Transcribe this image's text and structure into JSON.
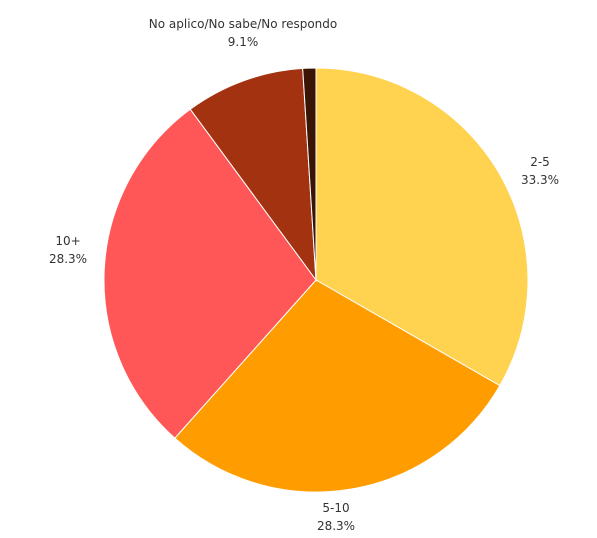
{
  "chart_data": {
    "type": "pie",
    "title": "",
    "slices": [
      {
        "label": "2-5",
        "value": 33.3,
        "value_label": "33.3%",
        "color": "#FFD24F"
      },
      {
        "label": "5-10",
        "value": 28.3,
        "value_label": "28.3%",
        "color": "#FF9D00"
      },
      {
        "label": "10+",
        "value": 28.3,
        "value_label": "28.3%",
        "color": "#FF5757"
      },
      {
        "label": "No aplico/No sabe/No respondo",
        "value": 9.1,
        "value_label": "9.1%",
        "color": "#A33310"
      },
      {
        "label": "",
        "value": 1.0,
        "value_label": "",
        "color": "#3A1506"
      }
    ]
  }
}
